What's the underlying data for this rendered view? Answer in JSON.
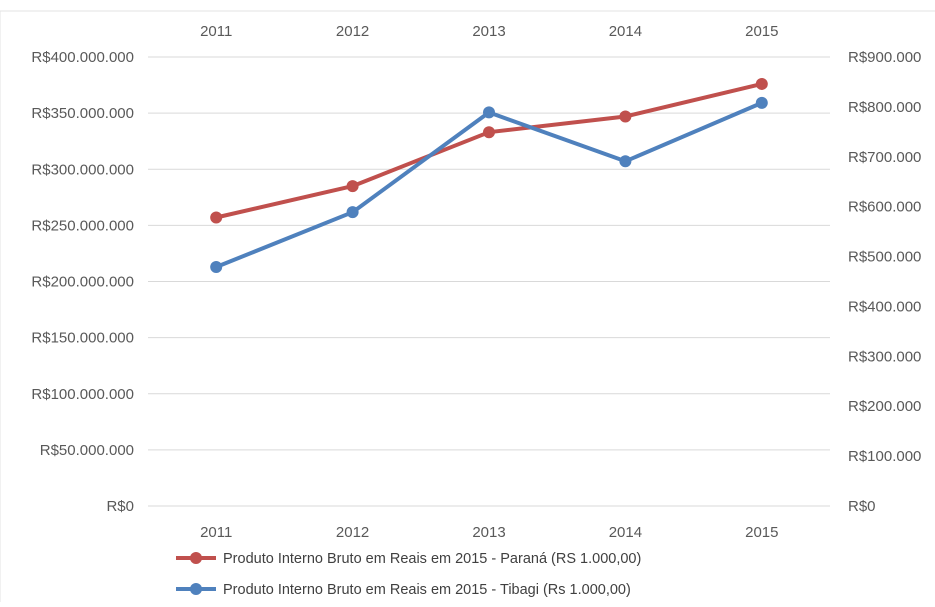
{
  "chart_data": {
    "type": "line",
    "categories": [
      "2011",
      "2012",
      "2013",
      "2014",
      "2015"
    ],
    "y_left": {
      "ylim": [
        0,
        400000000
      ],
      "ticks": [
        0,
        50000000,
        100000000,
        150000000,
        200000000,
        250000000,
        300000000,
        350000000,
        400000000
      ],
      "tick_labels": [
        "R$0",
        "R$50.000.000",
        "R$100.000.000",
        "R$150.000.000",
        "R$200.000.000",
        "R$250.000.000",
        "R$300.000.000",
        "R$350.000.000",
        "R$400.000.000"
      ]
    },
    "y_right": {
      "ylim": [
        0,
        900000
      ],
      "ticks": [
        0,
        100000,
        200000,
        300000,
        400000,
        500000,
        600000,
        700000,
        800000,
        900000
      ],
      "tick_labels": [
        "R$0",
        "R$100.000",
        "R$200.000",
        "R$300.000",
        "R$400.000",
        "R$500.000",
        "R$600.000",
        "R$700.000",
        "R$800.000",
        "R$900.000"
      ]
    },
    "series": [
      {
        "name": "Produto Interno Bruto em Reais em 2015 - Paraná (RS 1.000,00)",
        "axis": "left",
        "color": "#c0504d",
        "values": [
          257000000,
          285000000,
          333000000,
          347000000,
          376000000
        ]
      },
      {
        "name": "Produto Interno Bruto em Reais em 2015 - Tibagi (Rs 1.000,00)",
        "axis": "right",
        "color": "#4f81bd",
        "values": [
          479000,
          589000,
          789000,
          691000,
          808000
        ]
      }
    ],
    "grid": true,
    "legend": "bottom-left"
  }
}
